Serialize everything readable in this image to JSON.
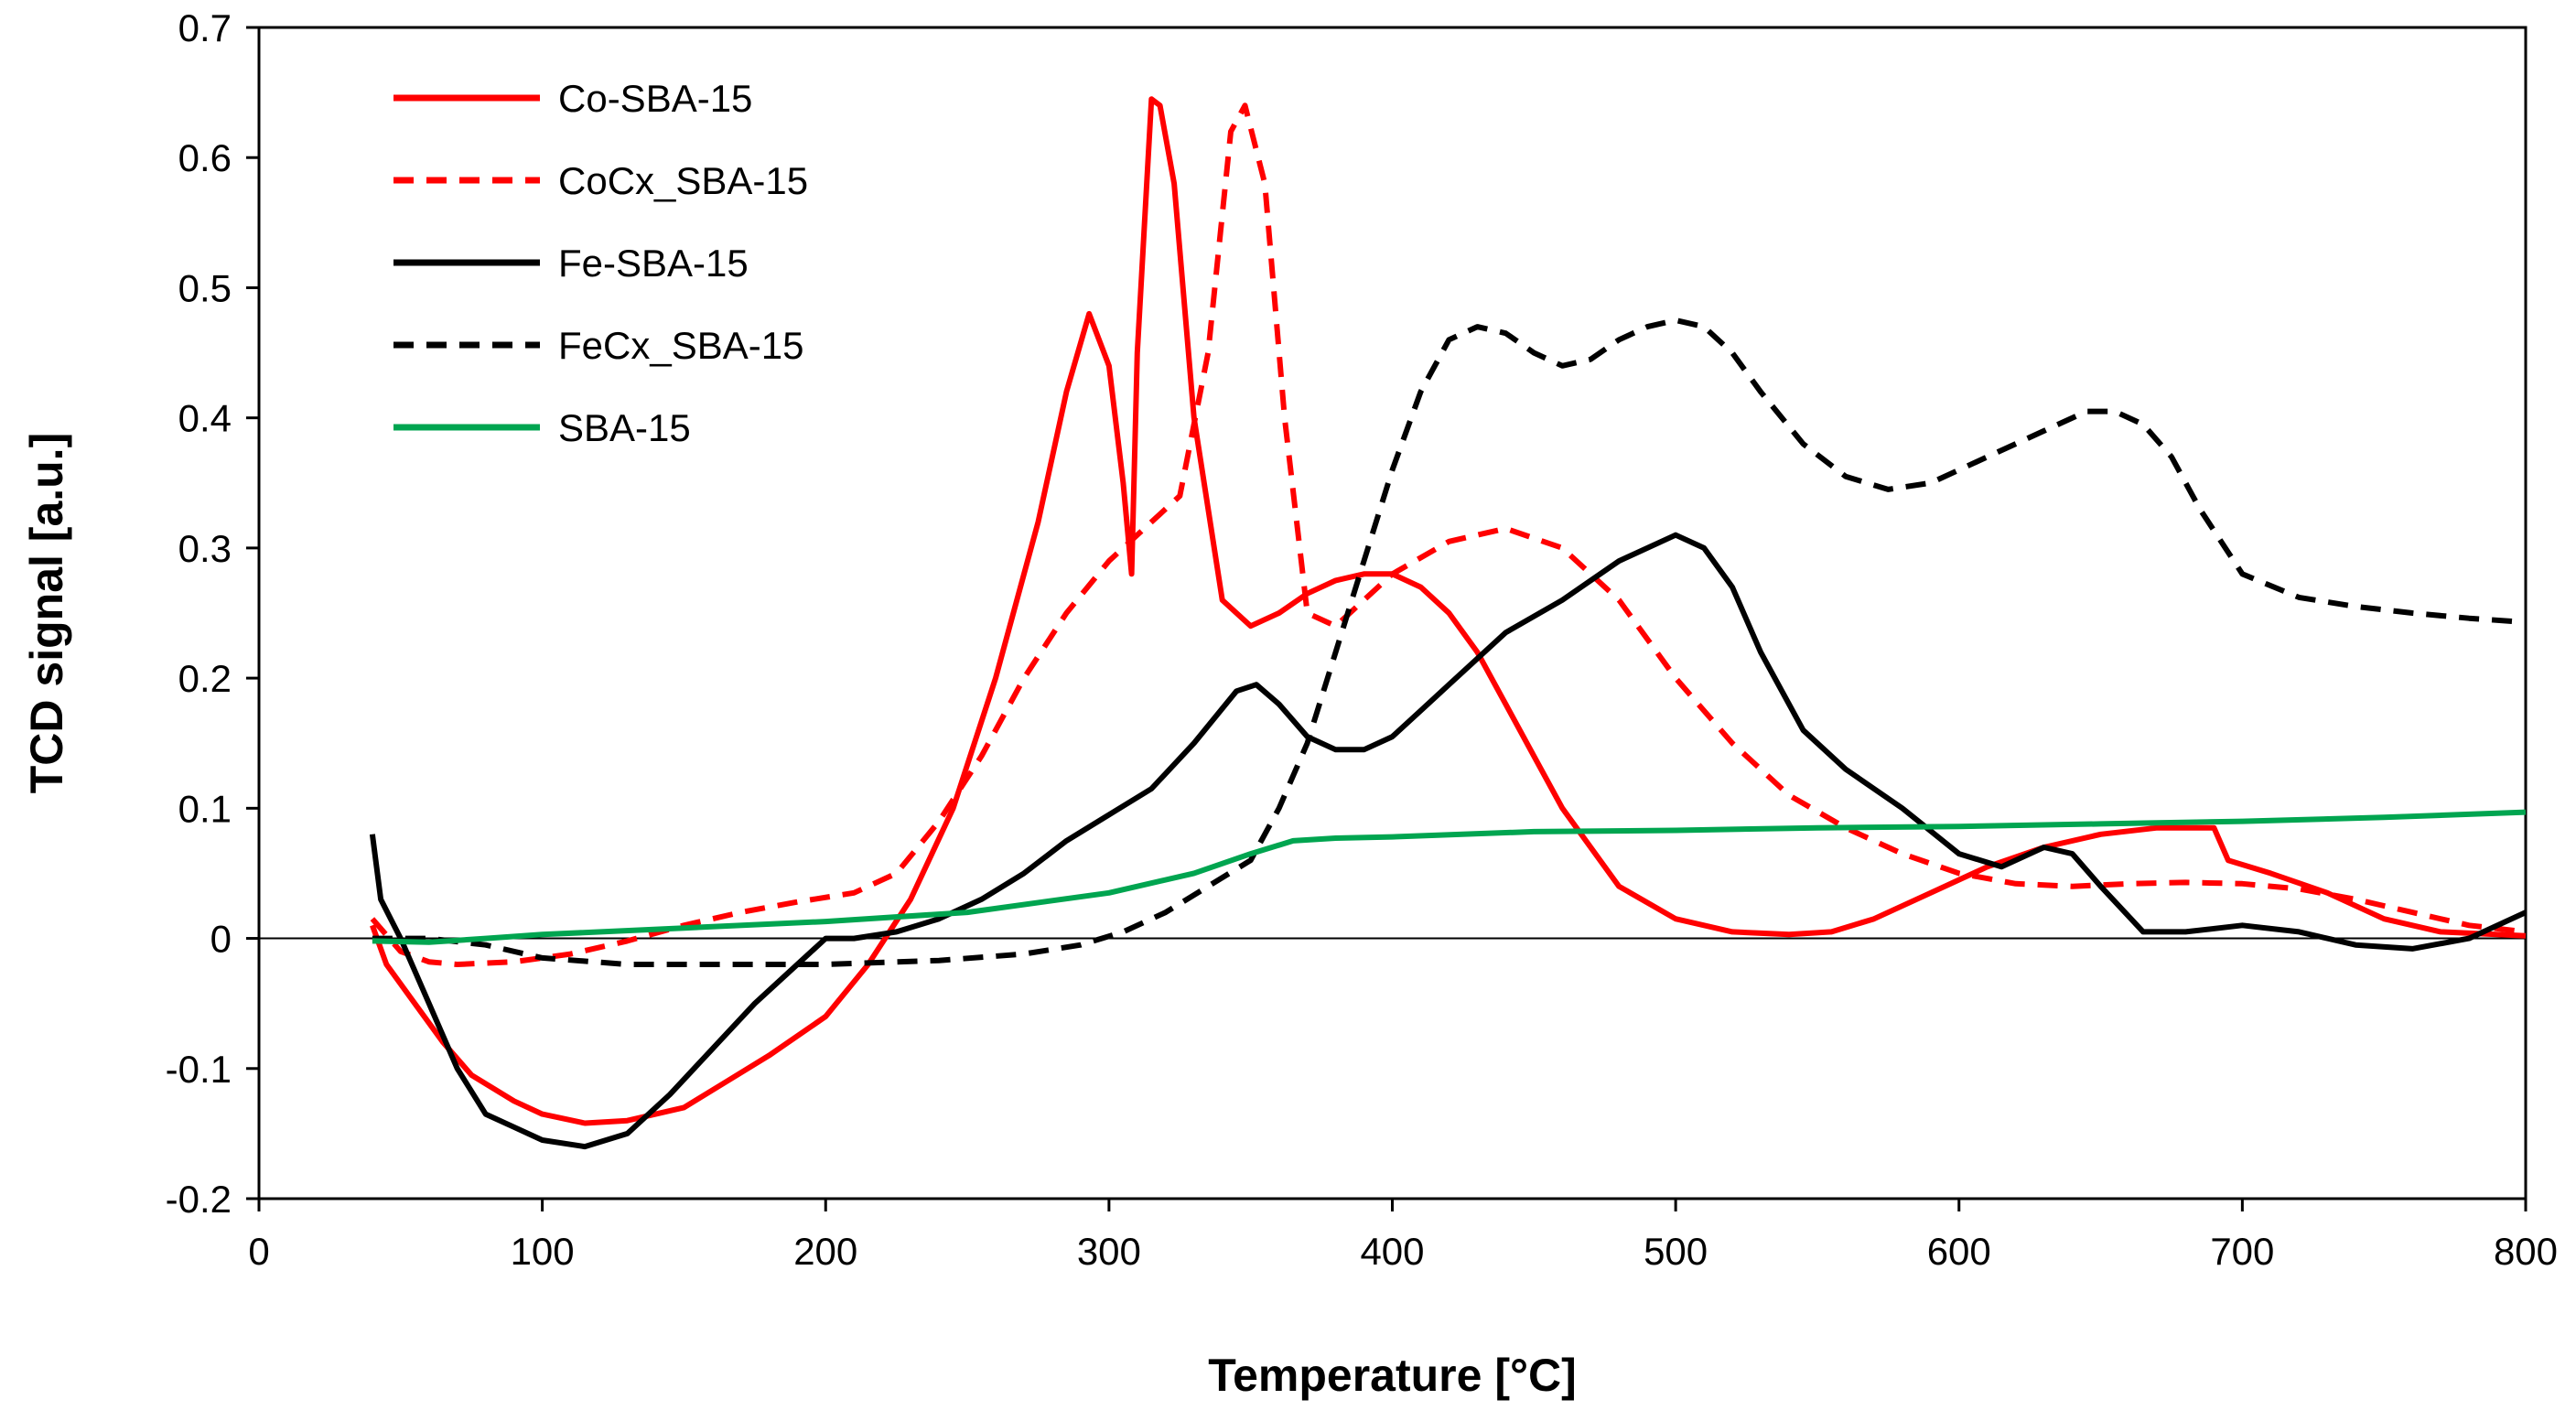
{
  "chart_data": {
    "type": "line",
    "title": "",
    "xlabel": "Temperature [°C]",
    "ylabel": "TCD signal [a.u.]",
    "xlim": [
      0,
      800
    ],
    "ylim": [
      -0.2,
      0.7
    ],
    "xticks": [
      0,
      100,
      200,
      300,
      400,
      500,
      600,
      700,
      800
    ],
    "yticks": [
      -0.2,
      -0.1,
      0,
      0.1,
      0.2,
      0.3,
      0.4,
      0.5,
      0.6,
      0.7
    ],
    "grid": false,
    "legend_position": "top-left",
    "series": [
      {
        "name": "Co-SBA-15",
        "color": "#ff0000",
        "dash": "solid",
        "x": [
          40,
          45,
          55,
          65,
          75,
          90,
          100,
          115,
          130,
          150,
          165,
          180,
          200,
          215,
          230,
          245,
          260,
          275,
          285,
          293,
          300,
          305,
          308,
          310,
          315,
          318,
          323,
          330,
          340,
          350,
          360,
          370,
          380,
          390,
          400,
          410,
          420,
          430,
          440,
          450,
          460,
          480,
          500,
          520,
          540,
          555,
          570,
          590,
          610,
          630,
          650,
          670,
          690,
          695,
          710,
          730,
          750,
          770,
          800
        ],
        "y": [
          0.01,
          -0.02,
          -0.05,
          -0.08,
          -0.105,
          -0.125,
          -0.135,
          -0.142,
          -0.14,
          -0.13,
          -0.11,
          -0.09,
          -0.06,
          -0.02,
          0.03,
          0.1,
          0.2,
          0.32,
          0.42,
          0.48,
          0.44,
          0.35,
          0.28,
          0.45,
          0.645,
          0.64,
          0.58,
          0.4,
          0.26,
          0.24,
          0.25,
          0.265,
          0.275,
          0.28,
          0.28,
          0.27,
          0.25,
          0.22,
          0.18,
          0.14,
          0.1,
          0.04,
          0.015,
          0.005,
          0.003,
          0.005,
          0.015,
          0.035,
          0.055,
          0.07,
          0.08,
          0.085,
          0.085,
          0.06,
          0.05,
          0.035,
          0.015,
          0.005,
          0.002
        ]
      },
      {
        "name": "CoCx_SBA-15",
        "color": "#ff0000",
        "dash": "dashed",
        "x": [
          40,
          50,
          60,
          70,
          90,
          110,
          130,
          150,
          170,
          190,
          210,
          225,
          240,
          255,
          270,
          285,
          300,
          315,
          325,
          335,
          343,
          348,
          355,
          362,
          370,
          380,
          390,
          400,
          420,
          440,
          460,
          480,
          500,
          520,
          540,
          560,
          580,
          600,
          620,
          640,
          660,
          680,
          700,
          720,
          740,
          760,
          780,
          800
        ],
        "y": [
          0.015,
          -0.01,
          -0.018,
          -0.02,
          -0.018,
          -0.012,
          -0.002,
          0.01,
          0.02,
          0.028,
          0.035,
          0.05,
          0.09,
          0.14,
          0.2,
          0.25,
          0.29,
          0.32,
          0.34,
          0.45,
          0.62,
          0.64,
          0.58,
          0.4,
          0.25,
          0.24,
          0.26,
          0.28,
          0.305,
          0.315,
          0.3,
          0.26,
          0.2,
          0.15,
          0.11,
          0.085,
          0.065,
          0.05,
          0.042,
          0.04,
          0.042,
          0.043,
          0.042,
          0.038,
          0.03,
          0.02,
          0.01,
          0.005
        ]
      },
      {
        "name": "Fe-SBA-15",
        "color": "#000000",
        "dash": "solid",
        "x": [
          40,
          43,
          50,
          60,
          70,
          80,
          90,
          100,
          115,
          130,
          145,
          160,
          175,
          190,
          200,
          210,
          225,
          240,
          255,
          270,
          285,
          300,
          315,
          330,
          345,
          352,
          360,
          370,
          380,
          390,
          400,
          410,
          420,
          440,
          460,
          480,
          500,
          510,
          520,
          530,
          545,
          560,
          580,
          600,
          615,
          630,
          640,
          650,
          665,
          680,
          700,
          720,
          740,
          760,
          780,
          800
        ],
        "y": [
          0.08,
          0.03,
          0.0,
          -0.05,
          -0.1,
          -0.135,
          -0.145,
          -0.155,
          -0.16,
          -0.15,
          -0.12,
          -0.085,
          -0.05,
          -0.02,
          0.0,
          0.0,
          0.005,
          0.015,
          0.03,
          0.05,
          0.075,
          0.095,
          0.115,
          0.15,
          0.19,
          0.195,
          0.18,
          0.155,
          0.145,
          0.145,
          0.155,
          0.175,
          0.195,
          0.235,
          0.26,
          0.29,
          0.31,
          0.3,
          0.27,
          0.22,
          0.16,
          0.13,
          0.1,
          0.065,
          0.055,
          0.07,
          0.065,
          0.04,
          0.005,
          0.005,
          0.01,
          0.005,
          -0.005,
          -0.008,
          0.0,
          0.02
        ]
      },
      {
        "name": "FeCx_SBA-15",
        "color": "#000000",
        "dash": "dashed",
        "x": [
          40,
          60,
          80,
          100,
          130,
          160,
          200,
          240,
          270,
          290,
          305,
          320,
          335,
          350,
          360,
          370,
          380,
          390,
          400,
          410,
          420,
          430,
          440,
          450,
          460,
          470,
          480,
          490,
          500,
          510,
          520,
          530,
          545,
          560,
          575,
          590,
          610,
          630,
          645,
          655,
          665,
          675,
          685,
          700,
          720,
          740,
          760,
          780,
          800
        ],
        "y": [
          0.0,
          0.0,
          -0.005,
          -0.015,
          -0.02,
          -0.02,
          -0.02,
          -0.017,
          -0.012,
          -0.005,
          0.005,
          0.02,
          0.04,
          0.06,
          0.1,
          0.15,
          0.22,
          0.29,
          0.36,
          0.42,
          0.46,
          0.47,
          0.465,
          0.45,
          0.44,
          0.445,
          0.46,
          0.47,
          0.475,
          0.47,
          0.45,
          0.42,
          0.38,
          0.355,
          0.345,
          0.35,
          0.37,
          0.39,
          0.405,
          0.405,
          0.395,
          0.37,
          0.33,
          0.28,
          0.262,
          0.255,
          0.25,
          0.246,
          0.243
        ]
      },
      {
        "name": "SBA-15",
        "color": "#00a550",
        "dash": "solid",
        "x": [
          40,
          60,
          80,
          100,
          150,
          200,
          250,
          300,
          330,
          350,
          365,
          380,
          400,
          450,
          500,
          550,
          600,
          650,
          700,
          750,
          800
        ],
        "y": [
          -0.002,
          -0.003,
          0.0,
          0.003,
          0.008,
          0.013,
          0.02,
          0.035,
          0.05,
          0.065,
          0.075,
          0.077,
          0.078,
          0.082,
          0.083,
          0.085,
          0.086,
          0.088,
          0.09,
          0.093,
          0.097
        ]
      }
    ]
  }
}
